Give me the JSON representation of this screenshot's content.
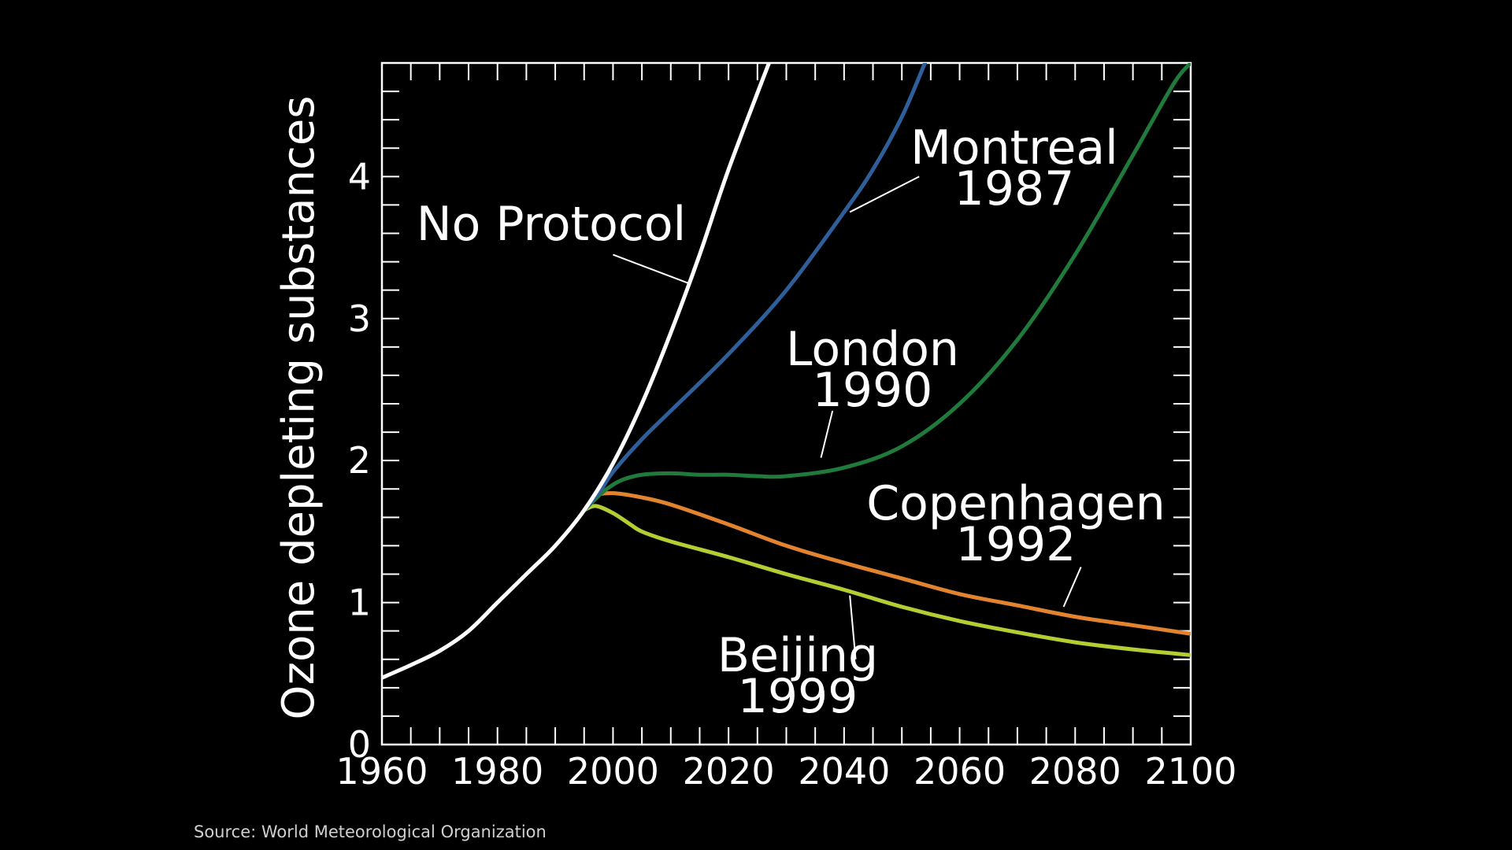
{
  "chart_data": {
    "type": "line",
    "title": "",
    "xlabel": "",
    "ylabel": "Ozone depleting substances",
    "xlim": [
      1960,
      2100
    ],
    "ylim": [
      0,
      4.8
    ],
    "xticks": [
      1960,
      1980,
      2000,
      2020,
      2040,
      2060,
      2080,
      2100
    ],
    "yticks": [
      0,
      1,
      2,
      3,
      4
    ],
    "grid": false,
    "legend": "none (curves labelled directly on chart)",
    "colors": {
      "background": "#000000",
      "axes": "#ffffff",
      "no_protocol": "#ffffff",
      "montreal": "#2f5f9a",
      "london": "#1f7a3c",
      "copenhagen": "#e2842f",
      "beijing": "#b5cc33"
    },
    "series": [
      {
        "key": "no_protocol",
        "name": "No Protocol",
        "x": [
          1960,
          1965,
          1970,
          1975,
          1980,
          1985,
          1990,
          1995,
          2000,
          2005,
          2010,
          2015,
          2020,
          2027
        ],
        "y": [
          0.47,
          0.56,
          0.66,
          0.8,
          1.0,
          1.2,
          1.4,
          1.65,
          1.98,
          2.4,
          2.9,
          3.45,
          4.05,
          4.8
        ]
      },
      {
        "key": "montreal",
        "name": "Montreal 1987",
        "x": [
          1995,
          1998,
          2000,
          2005,
          2010,
          2020,
          2030,
          2040,
          2045,
          2050,
          2054
        ],
        "y": [
          1.65,
          1.8,
          1.92,
          2.15,
          2.35,
          2.75,
          3.2,
          3.75,
          4.05,
          4.42,
          4.8
        ]
      },
      {
        "key": "london",
        "name": "London 1990",
        "x": [
          1995,
          1998,
          2000,
          2002,
          2005,
          2010,
          2015,
          2020,
          2025,
          2030,
          2040,
          2050,
          2060,
          2070,
          2080,
          2090,
          2097,
          2100
        ],
        "y": [
          1.65,
          1.77,
          1.83,
          1.87,
          1.9,
          1.91,
          1.9,
          1.9,
          1.89,
          1.89,
          1.95,
          2.1,
          2.4,
          2.85,
          3.45,
          4.15,
          4.65,
          4.8
        ]
      },
      {
        "key": "copenhagen",
        "name": "Copenhagen 1992",
        "x": [
          1995,
          1997,
          2000,
          2005,
          2010,
          2020,
          2030,
          2040,
          2050,
          2060,
          2070,
          2080,
          2090,
          2100
        ],
        "y": [
          1.65,
          1.75,
          1.77,
          1.74,
          1.69,
          1.55,
          1.4,
          1.28,
          1.17,
          1.06,
          0.98,
          0.9,
          0.84,
          0.78
        ]
      },
      {
        "key": "beijing",
        "name": "Beijing 1999",
        "x": [
          1995,
          1997,
          2000,
          2003,
          2005,
          2010,
          2020,
          2030,
          2040,
          2050,
          2060,
          2070,
          2080,
          2090,
          2100
        ],
        "y": [
          1.65,
          1.68,
          1.63,
          1.55,
          1.5,
          1.43,
          1.32,
          1.2,
          1.09,
          0.97,
          0.87,
          0.79,
          0.72,
          0.67,
          0.63
        ]
      }
    ],
    "annotations": [
      {
        "key": "no_protocol",
        "lines": [
          "No Protocol"
        ],
        "pointer_from": [
          2000,
          3.45
        ],
        "pointer_to": [
          2013,
          3.25
        ]
      },
      {
        "key": "montreal",
        "lines": [
          "Montreal",
          "1987"
        ],
        "pointer_from": [
          2053,
          4.0
        ],
        "pointer_to": [
          2041,
          3.75
        ]
      },
      {
        "key": "london",
        "lines": [
          "London",
          "1990"
        ],
        "pointer_from": [
          2038,
          2.35
        ],
        "pointer_to": [
          2036,
          2.02
        ]
      },
      {
        "key": "copenhagen",
        "lines": [
          "Copenhagen",
          "1992"
        ],
        "pointer_from": [
          2081,
          1.25
        ],
        "pointer_to": [
          2078,
          0.97
        ]
      },
      {
        "key": "beijing",
        "lines": [
          "Beijing",
          "1999"
        ],
        "pointer_from": [
          2042,
          0.6
        ],
        "pointer_to": [
          2041,
          1.05
        ]
      }
    ]
  },
  "source": "Source: World Meteorological Organization"
}
